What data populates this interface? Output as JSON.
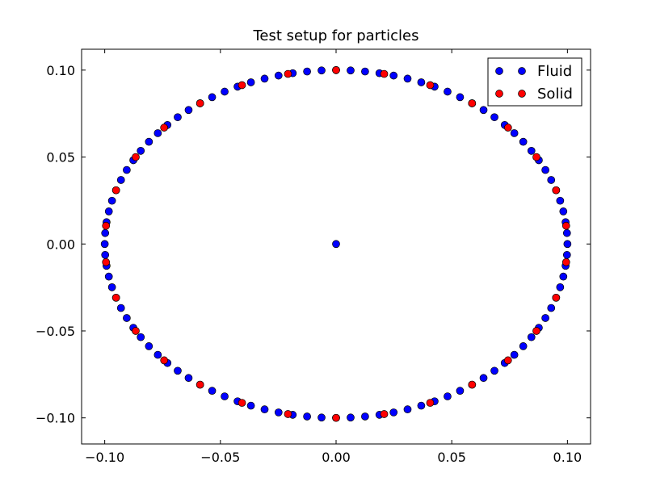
{
  "chart_data": {
    "type": "scatter",
    "title": "Test setup for particles",
    "xlabel": "",
    "ylabel": "",
    "xlim": [
      -0.11,
      0.11
    ],
    "ylim": [
      -0.115,
      0.112
    ],
    "grid": false,
    "legend_position": "top-right",
    "x_ticks": [
      -0.1,
      -0.05,
      0.0,
      0.05,
      0.1
    ],
    "x_tick_labels": [
      "−0.10",
      "−0.05",
      "0.00",
      "0.05",
      "0.10"
    ],
    "y_ticks": [
      0.1,
      0.05,
      0.0,
      -0.05,
      -0.1
    ],
    "y_tick_labels": [
      "0.10",
      "0.05",
      "0.00",
      "−0.05",
      "−0.10"
    ],
    "series": [
      {
        "name": "Fluid",
        "color": "#0000ff",
        "marker": "circle",
        "description_points": "100 points equally spaced on circle of radius 0.1 plus center point (0, 0)",
        "radius": 0.1,
        "count": 100,
        "center_point": [
          0.0,
          0.0
        ]
      },
      {
        "name": "Solid",
        "color": "#ff0000",
        "marker": "circle",
        "radius": 0.1,
        "count": 30
      }
    ]
  }
}
